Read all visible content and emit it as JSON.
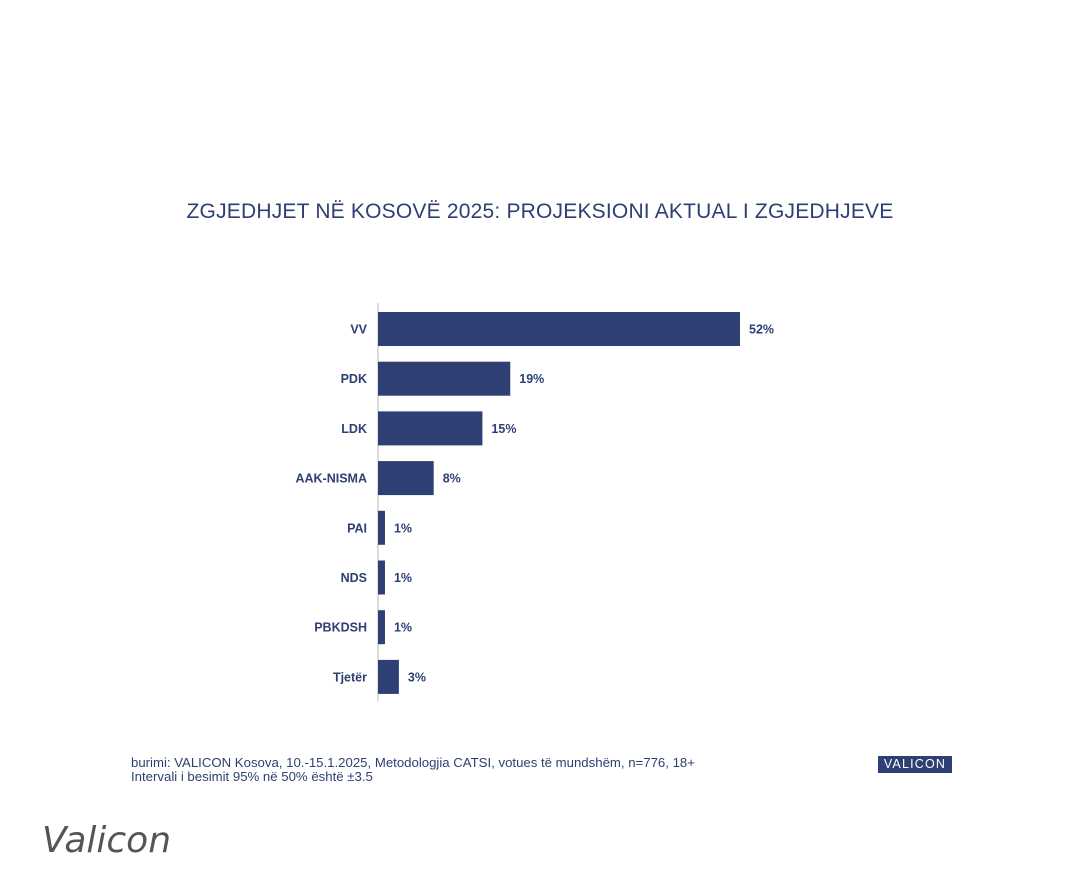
{
  "chart_data": {
    "type": "bar",
    "orientation": "horizontal",
    "title": "ZGJEDHJET NË KOSOVË 2025: PROJEKSIONI AKTUAL I ZGJEDHJEVE",
    "categories": [
      "VV",
      "PDK",
      "LDK",
      "AAK-NISMA",
      "PAI",
      "NDS",
      "PBKDSH",
      "Tjetër"
    ],
    "values": [
      52,
      19,
      15,
      8,
      1,
      1,
      1,
      3
    ],
    "value_labels": [
      "52%",
      "19%",
      "15%",
      "8%",
      "1%",
      "1%",
      "1%",
      "3%"
    ],
    "unit": "%",
    "xlim": [
      0,
      52
    ],
    "grid": false,
    "bar_color": "#2e3f73"
  },
  "footer": {
    "source_line1": "burimi: VALICON Kosova, 10.-15.1.2025, Metodologjia CATSI, votues të mundshëm, n=776, 18+",
    "source_line2": "Intervali i besimit 95% në 50% është ±3.5",
    "brand": "VALICON"
  },
  "watermark": "Valicon",
  "colors": {
    "primary": "#2e3f73",
    "watermark": "#555555"
  }
}
